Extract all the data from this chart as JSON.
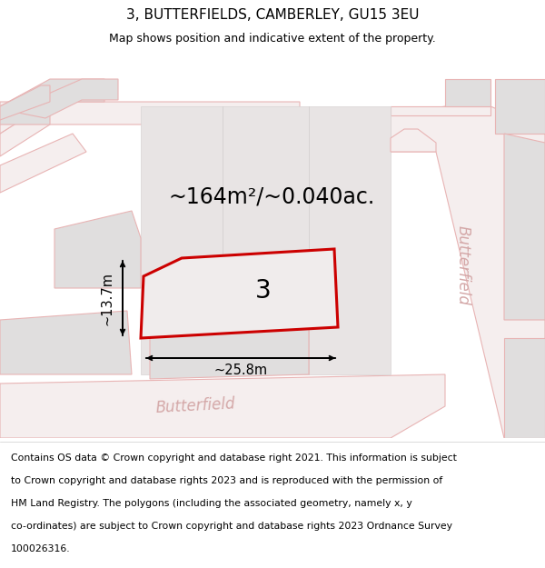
{
  "title": "3, BUTTERFIELDS, CAMBERLEY, GU15 3EU",
  "subtitle": "Map shows position and indicative extent of the property.",
  "footer_lines": [
    "Contains OS data © Crown copyright and database right 2021. This information is subject",
    "to Crown copyright and database rights 2023 and is reproduced with the permission of",
    "HM Land Registry. The polygons (including the associated geometry, namely x, y",
    "co-ordinates) are subject to Crown copyright and database rights 2023 Ordnance Survey",
    "100026316."
  ],
  "area_label": "~164m²/~0.040ac.",
  "width_label": "~25.8m",
  "height_label": "~13.7m",
  "plot_number": "3",
  "bg_color": "#f7f4f4",
  "road_stroke": "#e8b4b4",
  "road_fill": "#f5eeee",
  "building_fill": "#e0dede",
  "building_stroke": "#e8b4b4",
  "plot_fill": "#f0ecec",
  "plot_stroke": "#cc0000",
  "title_fontsize": 11,
  "subtitle_fontsize": 9,
  "footer_fontsize": 7.8,
  "area_fontsize": 17,
  "dim_fontsize": 10.5,
  "plot_num_fontsize": 20,
  "road_label_fontsize": 12,
  "road_label_color": "#d4a8a8"
}
